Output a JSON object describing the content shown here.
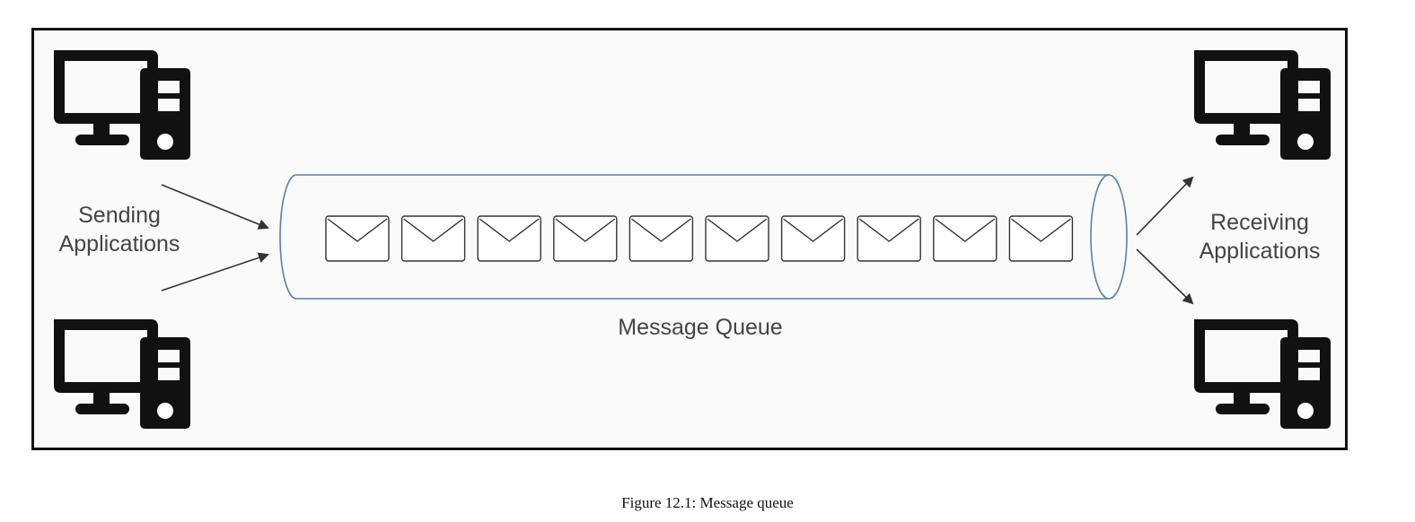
{
  "diagram": {
    "sending_label_line1": "Sending",
    "sending_label_line2": "Applications",
    "receiving_label_line1": "Receiving",
    "receiving_label_line2": "Applications",
    "queue_label": "Message Queue",
    "message_count": 10,
    "colors": {
      "frame": "#111111",
      "computer": "#111111",
      "queue_outline": "#5b7fa8",
      "envelope": "#333333",
      "text": "#444444"
    }
  },
  "caption": "Figure 12.1: Message queue"
}
